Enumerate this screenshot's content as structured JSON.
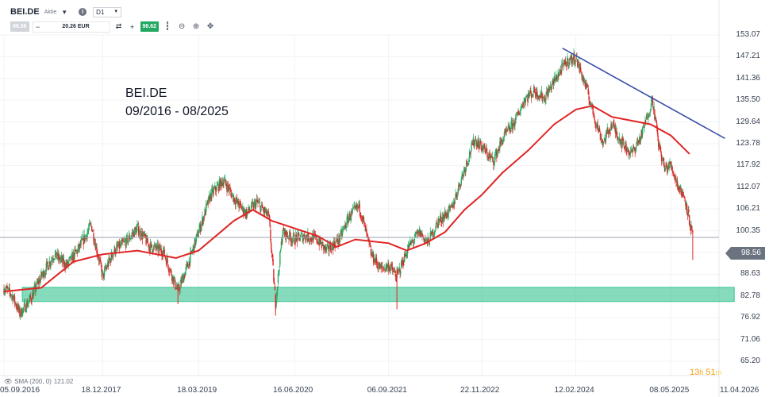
{
  "toolbar": {
    "symbol": "BEI.DE",
    "asset_type": "Aktie",
    "timeframe": "D1",
    "sell_price": "98.56",
    "minus_label": "−",
    "amount": "20.26 EUR",
    "plus_label": "+",
    "buy_price": "98.62"
  },
  "annotation": {
    "line1": "BEI.DE",
    "line2": "09/2016 - 08/2025"
  },
  "indicator": {
    "label": "SMA (200, 0)",
    "value": "121.02"
  },
  "current_price_label": "98.56",
  "countdown": {
    "hours": "13",
    "h_unit": "h",
    "minutes": "51",
    "m_unit": "m"
  },
  "colors": {
    "sma_line": "#e02424",
    "trendline": "#3b4fa8",
    "support_zone": "#34c38f",
    "candle_up": "#22a861",
    "candle_down": "#e02424",
    "price_line": "#9ca3af"
  },
  "chart_data": {
    "type": "candlestick",
    "title": "",
    "x_ticks": [
      "05.09.2016",
      "18.12.2017",
      "18.03.2019",
      "16.06.2020",
      "06.09.2021",
      "22.11.2022",
      "12.02.2024",
      "08.05.2025",
      "11.04.2026"
    ],
    "y_ticks": [
      "153.07",
      "147.21",
      "141.36",
      "135.50",
      "129.64",
      "123.78",
      "117.92",
      "112.07",
      "106.21",
      "100.35",
      "94.49",
      "88.63",
      "82.78",
      "76.92",
      "71.06",
      "65.20"
    ],
    "ylim": [
      65.2,
      153.07
    ],
    "current_price": 98.56,
    "close_path": [
      [
        "2016-09-05",
        85
      ],
      [
        "2016-10-15",
        83
      ],
      [
        "2016-11-20",
        78
      ],
      [
        "2017-01-10",
        82
      ],
      [
        "2017-03-01",
        88
      ],
      [
        "2017-05-01",
        94
      ],
      [
        "2017-07-01",
        91
      ],
      [
        "2017-09-01",
        96
      ],
      [
        "2017-10-25",
        102
      ],
      [
        "2017-12-18",
        88
      ],
      [
        "2018-02-10",
        95
      ],
      [
        "2018-04-01",
        97
      ],
      [
        "2018-06-01",
        101
      ],
      [
        "2018-08-01",
        96
      ],
      [
        "2018-10-01",
        95
      ],
      [
        "2018-12-10",
        84
      ],
      [
        "2019-02-01",
        92
      ],
      [
        "2019-03-18",
        100
      ],
      [
        "2019-05-15",
        110
      ],
      [
        "2019-07-15",
        114
      ],
      [
        "2019-09-15",
        108
      ],
      [
        "2019-11-01",
        105
      ],
      [
        "2019-12-20",
        108
      ],
      [
        "2020-02-15",
        104
      ],
      [
        "2020-03-18",
        81
      ],
      [
        "2020-04-20",
        100
      ],
      [
        "2020-06-16",
        98
      ],
      [
        "2020-08-01",
        99
      ],
      [
        "2020-10-01",
        98
      ],
      [
        "2020-11-15",
        95
      ],
      [
        "2021-01-15",
        98
      ],
      [
        "2021-03-01",
        104
      ],
      [
        "2021-04-20",
        107
      ],
      [
        "2021-06-15",
        94
      ],
      [
        "2021-08-01",
        90
      ],
      [
        "2021-09-06",
        91
      ],
      [
        "2021-10-15",
        88
      ],
      [
        "2021-12-10",
        96
      ],
      [
        "2022-02-01",
        100
      ],
      [
        "2022-03-10",
        97
      ],
      [
        "2022-05-01",
        103
      ],
      [
        "2022-07-01",
        106
      ],
      [
        "2022-09-01",
        117
      ],
      [
        "2022-10-20",
        125
      ],
      [
        "2022-11-22",
        123
      ],
      [
        "2023-01-15",
        119
      ],
      [
        "2023-03-01",
        125
      ],
      [
        "2023-05-01",
        130
      ],
      [
        "2023-06-15",
        136
      ],
      [
        "2023-08-01",
        138
      ],
      [
        "2023-09-15",
        136
      ],
      [
        "2023-11-15",
        142
      ],
      [
        "2024-01-01",
        146
      ],
      [
        "2024-02-12",
        147
      ],
      [
        "2024-04-01",
        139
      ],
      [
        "2024-05-15",
        130
      ],
      [
        "2024-06-20",
        124
      ],
      [
        "2024-08-01",
        129
      ],
      [
        "2024-09-20",
        124
      ],
      [
        "2024-11-01",
        121
      ],
      [
        "2024-12-20",
        126
      ],
      [
        "2025-02-10",
        136
      ],
      [
        "2025-03-10",
        124
      ],
      [
        "2025-04-08",
        117
      ],
      [
        "2025-05-08",
        118
      ],
      [
        "2025-06-15",
        112
      ],
      [
        "2025-07-15",
        109
      ],
      [
        "2025-08-20",
        98.56
      ]
    ],
    "sma200": {
      "label": "SMA (200, 0)",
      "points": [
        [
          "2016-09-05",
          84
        ],
        [
          "2017-03-01",
          85
        ],
        [
          "2017-08-01",
          92
        ],
        [
          "2017-12-18",
          94
        ],
        [
          "2018-06-01",
          95
        ],
        [
          "2018-12-01",
          93
        ],
        [
          "2019-03-18",
          95
        ],
        [
          "2019-09-01",
          103
        ],
        [
          "2019-12-01",
          106
        ],
        [
          "2020-03-01",
          103
        ],
        [
          "2020-06-16",
          101
        ],
        [
          "2020-10-01",
          99
        ],
        [
          "2021-01-01",
          96
        ],
        [
          "2021-04-01",
          98
        ],
        [
          "2021-09-06",
          97
        ],
        [
          "2021-12-01",
          95
        ],
        [
          "2022-03-01",
          97
        ],
        [
          "2022-06-01",
          100
        ],
        [
          "2022-09-01",
          106
        ],
        [
          "2022-11-22",
          110
        ],
        [
          "2023-03-01",
          116
        ],
        [
          "2023-07-01",
          122
        ],
        [
          "2023-11-01",
          129
        ],
        [
          "2024-02-12",
          133
        ],
        [
          "2024-05-01",
          134
        ],
        [
          "2024-08-01",
          131
        ],
        [
          "2024-11-01",
          130
        ],
        [
          "2025-02-01",
          129
        ],
        [
          "2025-05-08",
          126
        ],
        [
          "2025-08-05",
          121.02
        ]
      ]
    },
    "trendline": {
      "start": [
        "2023-12-10",
        149.5
      ],
      "end": [
        "2026-01-20",
        125.2
      ]
    },
    "support_zone": {
      "x_start": "2016-12-01",
      "x_end": "2026-03-05",
      "y_low": 81.3,
      "y_high": 85.1
    }
  }
}
